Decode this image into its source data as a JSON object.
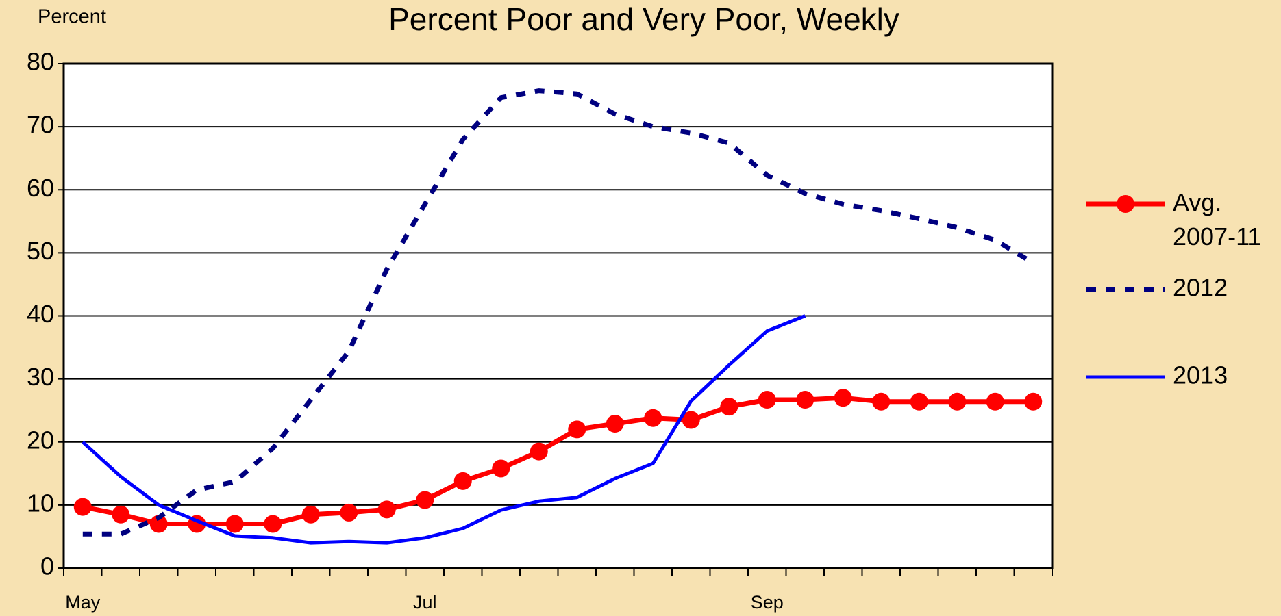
{
  "chart_data": {
    "type": "line",
    "title": "Percent Poor and Very Poor, Weekly",
    "y_label": "Percent",
    "categories": [
      "May",
      null,
      null,
      null,
      null,
      null,
      null,
      null,
      null,
      "Jul",
      null,
      null,
      null,
      null,
      null,
      null,
      null,
      null,
      "Sep",
      null,
      null,
      null,
      null,
      null,
      null,
      null
    ],
    "series": [
      {
        "name": "Avg. 2007-11",
        "color": "#ff0000",
        "style": "solid-markers",
        "values": [
          9.7,
          8.5,
          7,
          7,
          7,
          7,
          8.5,
          8.8,
          9.3,
          10.8,
          13.8,
          15.8,
          18.5,
          22,
          22.9,
          23.8,
          23.5,
          25.6,
          26.7,
          26.7,
          27,
          26.4,
          26.4,
          26.4,
          26.4,
          26.4
        ]
      },
      {
        "name": "2012",
        "color": "#000080",
        "style": "dashed",
        "values": [
          5.4,
          5.4,
          8,
          12.4,
          13.7,
          19,
          26.7,
          34.4,
          47.4,
          57.7,
          68,
          74.6,
          75.7,
          75.2,
          72,
          70,
          69,
          67.4,
          62.3,
          59.4,
          57.7,
          56.7,
          55.4,
          54,
          52,
          48.4
        ]
      },
      {
        "name": "2013",
        "color": "#0000ff",
        "style": "solid",
        "values": [
          20,
          14.5,
          10,
          7.5,
          5.1,
          4.8,
          4,
          4.2,
          4,
          4.8,
          6.3,
          9.2,
          10.6,
          11.2,
          14.2,
          16.6,
          26.5,
          32.2,
          37.6,
          40,
          null,
          null,
          null,
          null,
          null,
          null
        ]
      }
    ],
    "ylim": [
      0,
      80
    ],
    "yticks": [
      0,
      10,
      20,
      30,
      40,
      50,
      60,
      70,
      80
    ],
    "grid": true,
    "legend": "right"
  }
}
